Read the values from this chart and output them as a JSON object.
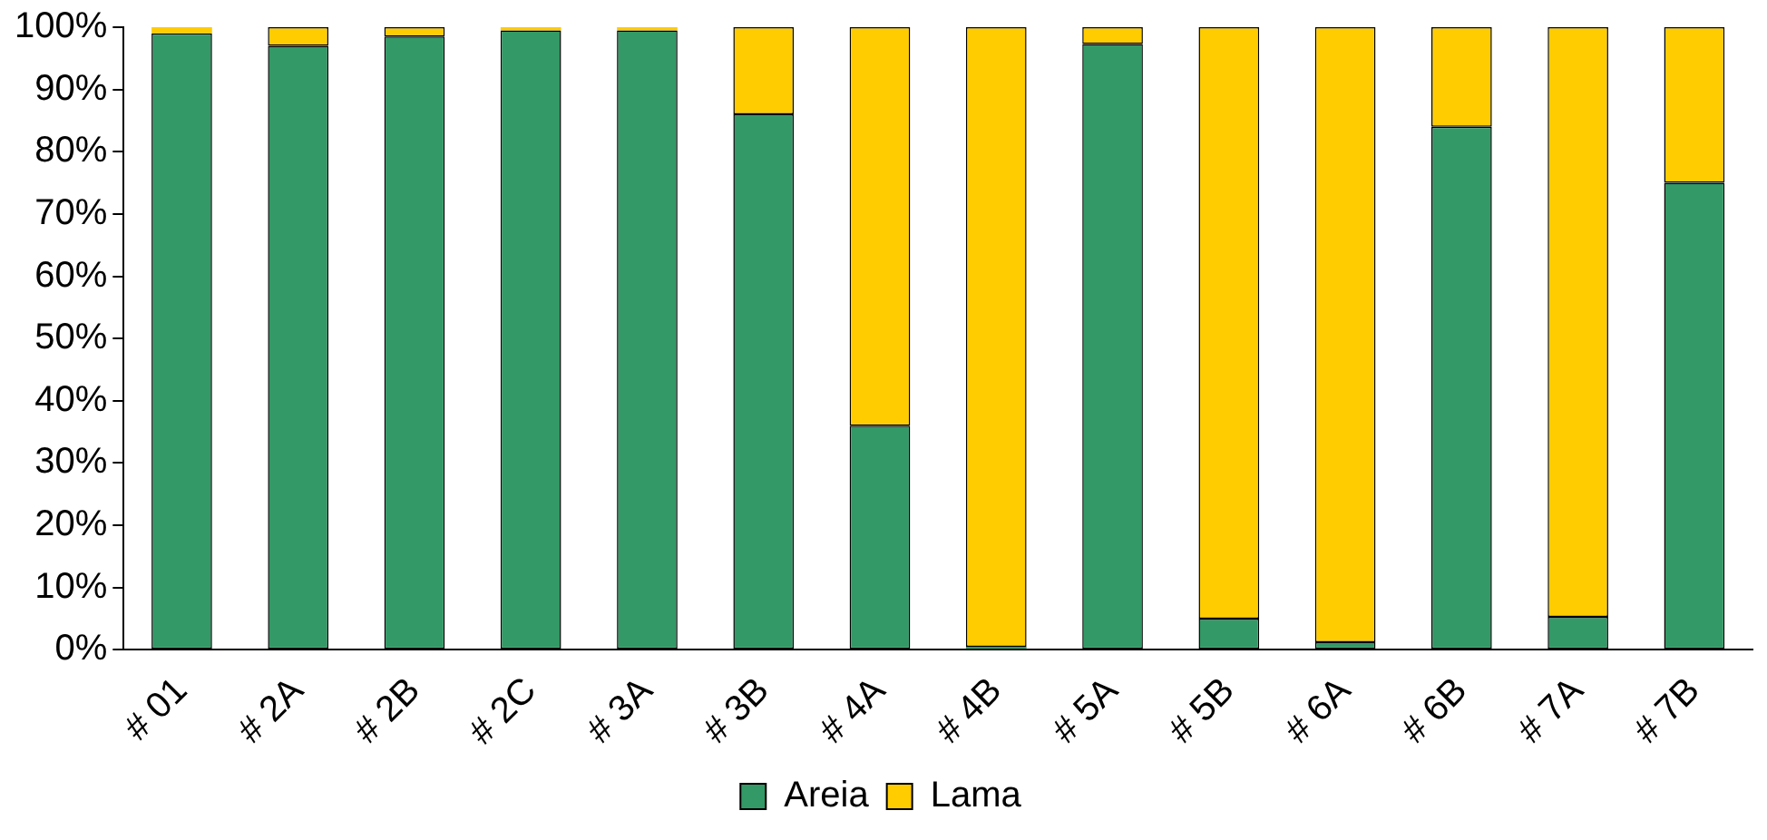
{
  "chart_data": {
    "type": "bar",
    "stacked": true,
    "categories": [
      "# 01",
      "# 2A",
      "# 2B",
      "# 2C",
      "# 3A",
      "# 3B",
      "# 4A",
      "# 4B",
      "# 5A",
      "# 5B",
      "# 6A",
      "# 6B",
      "# 7A",
      "# 7B"
    ],
    "series": [
      {
        "name": "Areia",
        "color": "#339966",
        "values": [
          99,
          97,
          98.5,
          99.5,
          99.5,
          86,
          36,
          0.5,
          97.3,
          5,
          1.2,
          84,
          5.3,
          75
        ]
      },
      {
        "name": "Lama",
        "color": "#ffcc00",
        "values": [
          1,
          3,
          1.5,
          0.5,
          0.5,
          14,
          64,
          99.5,
          2.7,
          95,
          98.8,
          16,
          94.7,
          25
        ]
      }
    ],
    "ylim": [
      0,
      100
    ],
    "yticks": [
      {
        "value": 0,
        "label": "0%"
      },
      {
        "value": 10,
        "label": "10%"
      },
      {
        "value": 20,
        "label": "20%"
      },
      {
        "value": 30,
        "label": "30%"
      },
      {
        "value": 40,
        "label": "40%"
      },
      {
        "value": 50,
        "label": "50%"
      },
      {
        "value": 60,
        "label": "60%"
      },
      {
        "value": 70,
        "label": "70%"
      },
      {
        "value": 80,
        "label": "80%"
      },
      {
        "value": 90,
        "label": "90%"
      },
      {
        "value": 100,
        "label": "100%"
      }
    ],
    "legend": "bottom"
  }
}
